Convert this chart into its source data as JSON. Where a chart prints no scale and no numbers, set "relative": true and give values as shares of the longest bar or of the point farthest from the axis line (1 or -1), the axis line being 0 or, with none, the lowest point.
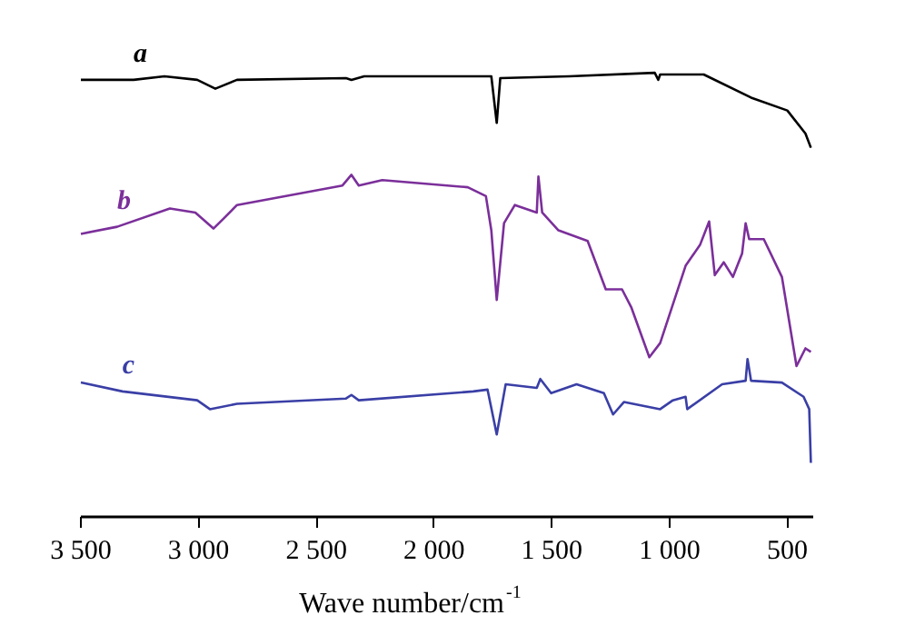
{
  "chart_data": {
    "type": "line",
    "relative": true,
    "xlabel": "Wave number/cm$^{-1}$",
    "xlim": [
      3500,
      390
    ],
    "xticks": [
      {
        "value": 3500,
        "label": "3 500"
      },
      {
        "value": 3000,
        "label": "3 000"
      },
      {
        "value": 2500,
        "label": "2 500"
      },
      {
        "value": 2000,
        "label": "2 000"
      },
      {
        "value": 1500,
        "label": "1 500"
      },
      {
        "value": 1000,
        "label": "1 000"
      },
      500
    ],
    "grid": false,
    "legend": false,
    "marker": "none",
    "line_style": "solid",
    "series": [
      {
        "name": "a",
        "color": "#000000",
        "x": [
          3500,
          3276,
          3145,
          3006,
          2929,
          2837,
          2374,
          2351,
          2297,
          1757,
          1734,
          1719,
          1426,
          1063,
          1048,
          1040,
          855,
          654,
          500,
          423,
          400
        ],
        "values": [
          0.984,
          0.984,
          0.992,
          0.984,
          0.964,
          0.984,
          0.988,
          0.984,
          0.992,
          0.992,
          0.887,
          0.988,
          0.992,
          1.0,
          0.984,
          0.996,
          0.996,
          0.944,
          0.915,
          0.863,
          0.831
        ]
      },
      {
        "name": "b",
        "color": "#7b2f9a",
        "x": [
          3500,
          3346,
          3122,
          3014,
          2937,
          2891,
          2837,
          2389,
          2351,
          2320,
          2220,
          1857,
          1780,
          1757,
          1734,
          1703,
          1657,
          1564,
          1557,
          1541,
          1472,
          1348,
          1271,
          1202,
          1163,
          1086,
          1040,
          932,
          870,
          832,
          808,
          770,
          731,
          692,
          677,
          662,
          600,
          523,
          461,
          423,
          400
        ],
        "values": [
          0.637,
          0.653,
          0.694,
          0.685,
          0.649,
          0.673,
          0.702,
          0.746,
          0.77,
          0.746,
          0.758,
          0.742,
          0.722,
          0.645,
          0.488,
          0.661,
          0.702,
          0.685,
          0.766,
          0.685,
          0.645,
          0.621,
          0.512,
          0.512,
          0.472,
          0.359,
          0.391,
          0.565,
          0.613,
          0.665,
          0.544,
          0.573,
          0.54,
          0.593,
          0.661,
          0.625,
          0.625,
          0.54,
          0.339,
          0.379,
          0.371
        ]
      },
      {
        "name": "c",
        "color": "#3a3fa6",
        "x": [
          3500,
          3323,
          3006,
          2952,
          2837,
          2374,
          2351,
          2320,
          1834,
          1773,
          1734,
          1696,
          1564,
          1549,
          1503,
          1395,
          1279,
          1240,
          1194,
          1040,
          986,
          932,
          925,
          777,
          677,
          669,
          654,
          523,
          431,
          407,
          400
        ],
        "values": [
          0.302,
          0.282,
          0.262,
          0.242,
          0.254,
          0.266,
          0.274,
          0.262,
          0.282,
          0.286,
          0.185,
          0.298,
          0.29,
          0.31,
          0.278,
          0.298,
          0.278,
          0.23,
          0.258,
          0.242,
          0.262,
          0.27,
          0.242,
          0.298,
          0.306,
          0.355,
          0.306,
          0.302,
          0.27,
          0.242,
          0.121
        ]
      }
    ]
  }
}
